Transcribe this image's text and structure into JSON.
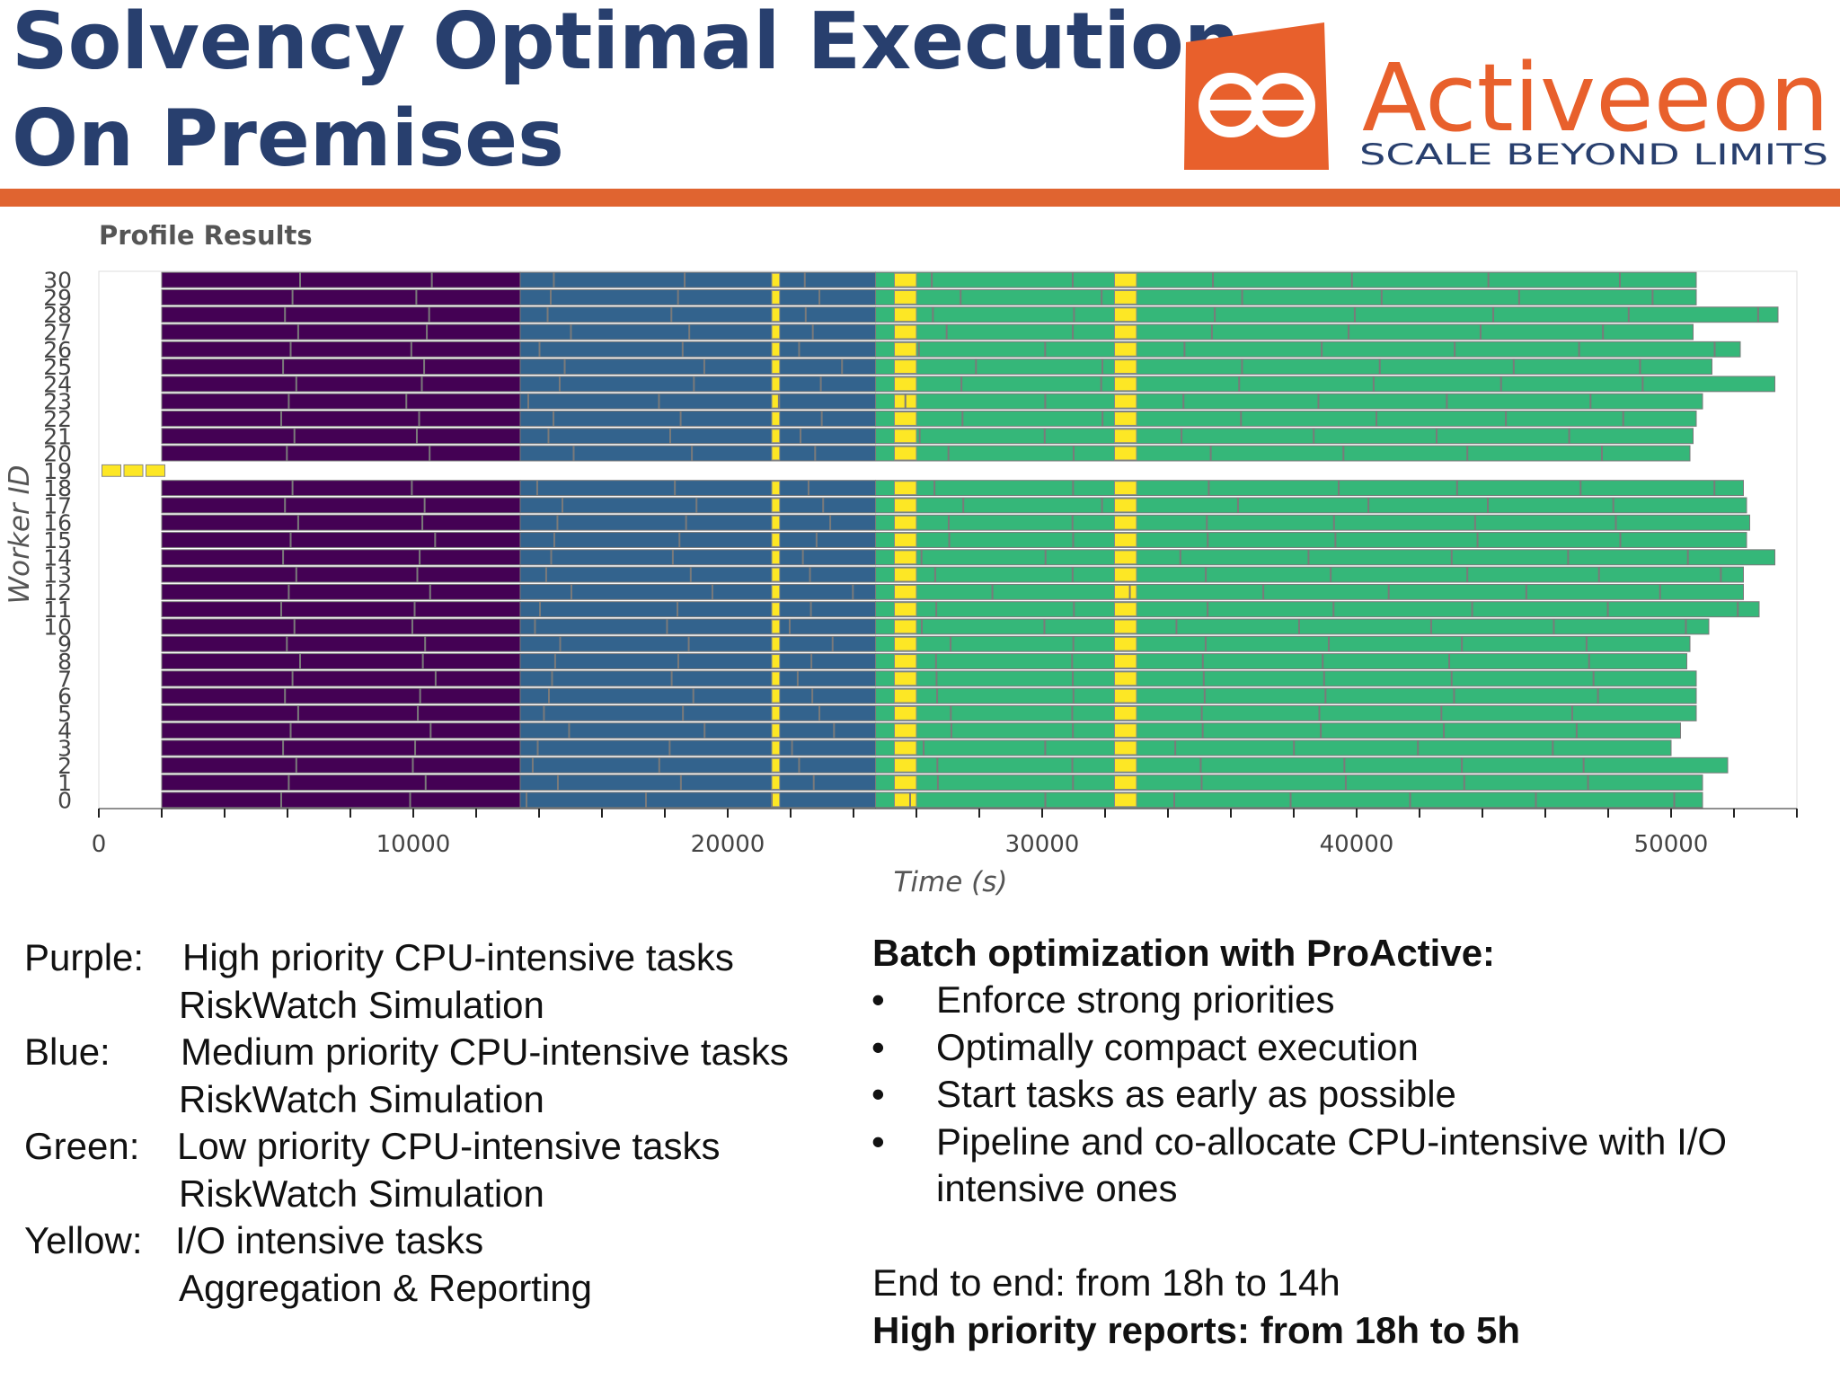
{
  "slide": {
    "title_line1": "Solvency Optimal Execution",
    "title_line2": "On Premises",
    "accent_color": "#e06430",
    "title_color": "#283f6e"
  },
  "logo": {
    "name": "Activeeon",
    "tagline": "SCALE BEYOND LIMITS",
    "icon": "activeeon-infinity-logo",
    "brand_color": "#e8602c"
  },
  "chart_data": {
    "type": "gantt",
    "title": "Profile Results",
    "xlabel": "Time (s)",
    "ylabel": "Worker ID",
    "xlim": [
      0,
      54000
    ],
    "ylim": [
      0,
      30
    ],
    "x_ticks": [
      0,
      10000,
      20000,
      30000,
      40000,
      50000
    ],
    "y_ticks": [
      0,
      1,
      2,
      3,
      4,
      5,
      6,
      7,
      8,
      9,
      10,
      11,
      12,
      13,
      14,
      15,
      16,
      17,
      18,
      19,
      20,
      21,
      22,
      23,
      24,
      25,
      26,
      27,
      28,
      29,
      30
    ],
    "grid": false,
    "series": [
      {
        "name": "Purple",
        "color": "#440154",
        "start": 2000,
        "end": 13400
      },
      {
        "name": "Blue",
        "color": "#33638d",
        "start": 13400,
        "end": 24700
      },
      {
        "name": "Green",
        "color": "#35b779",
        "start": 24700,
        "end": 51000
      },
      {
        "name": "Yellow",
        "color": "#fde725",
        "markers": [
          21400,
          25300,
          32300
        ]
      }
    ],
    "worker_end_times": [
      51000,
      51000,
      51800,
      50000,
      50300,
      50800,
      50800,
      50800,
      50500,
      50600,
      51200,
      52800,
      52300,
      52300,
      53300,
      52400,
      52500,
      52400,
      52300,
      0,
      50600,
      50700,
      50800,
      51000,
      53300,
      51300,
      52200,
      50700,
      53400,
      50800,
      50800
    ]
  },
  "legend_text": {
    "rows": [
      {
        "head": "Purple:",
        "text": "High priority CPU-intensive tasks"
      },
      {
        "head": "",
        "text": "RiskWatch Simulation"
      },
      {
        "head": "Blue:",
        "text": "Medium priority CPU-intensive tasks"
      },
      {
        "head": "",
        "text": "RiskWatch Simulation"
      },
      {
        "head": "Green:",
        "text": "Low priority CPU-intensive tasks"
      },
      {
        "head": "",
        "text": "RiskWatch Simulation"
      },
      {
        "head": "Yellow:",
        "text": "I/O intensive tasks"
      },
      {
        "head": "",
        "text": "Aggregation & Reporting"
      }
    ]
  },
  "summary": {
    "heading": "Batch optimization with ProActive:",
    "bullet_symbol": "•",
    "bullets": [
      "Enforce strong priorities",
      "Optimally compact execution",
      "Start tasks as early as possible",
      "Pipeline and co-allocate CPU-intensive with I/O",
      "intensive ones"
    ],
    "end_to_end": "End to end: from 18h to 14h",
    "high_priority": "High priority reports:  from 18h to 5h"
  }
}
